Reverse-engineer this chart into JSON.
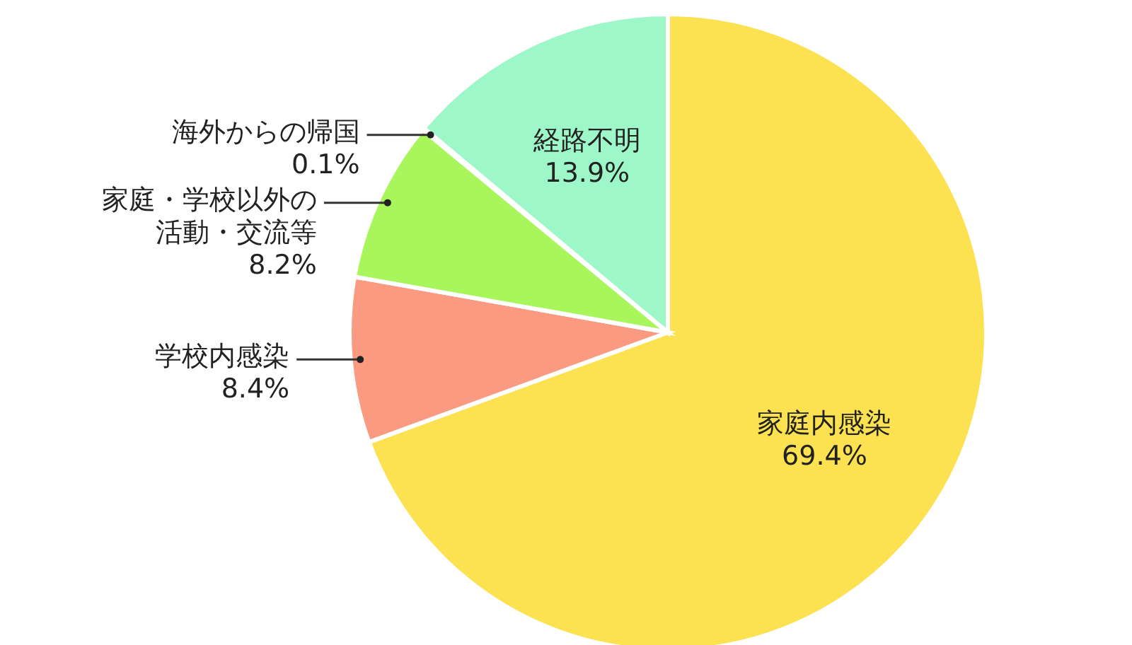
{
  "chart_data": {
    "type": "pie",
    "categories": [
      "家庭内感染",
      "学校内感染",
      "家庭・学校以外の活動・交流等",
      "海外からの帰国",
      "経路不明"
    ],
    "values": [
      69.4,
      8.4,
      8.2,
      0.1,
      13.9
    ],
    "value_labels": [
      "69.4%",
      "8.4%",
      "8.2%",
      "0.1%",
      "13.9%"
    ],
    "colors": [
      "#fce150",
      "#fa9a80",
      "#a8f55c",
      "#d8f5c0",
      "#9ef7c8"
    ],
    "legend": false
  }
}
